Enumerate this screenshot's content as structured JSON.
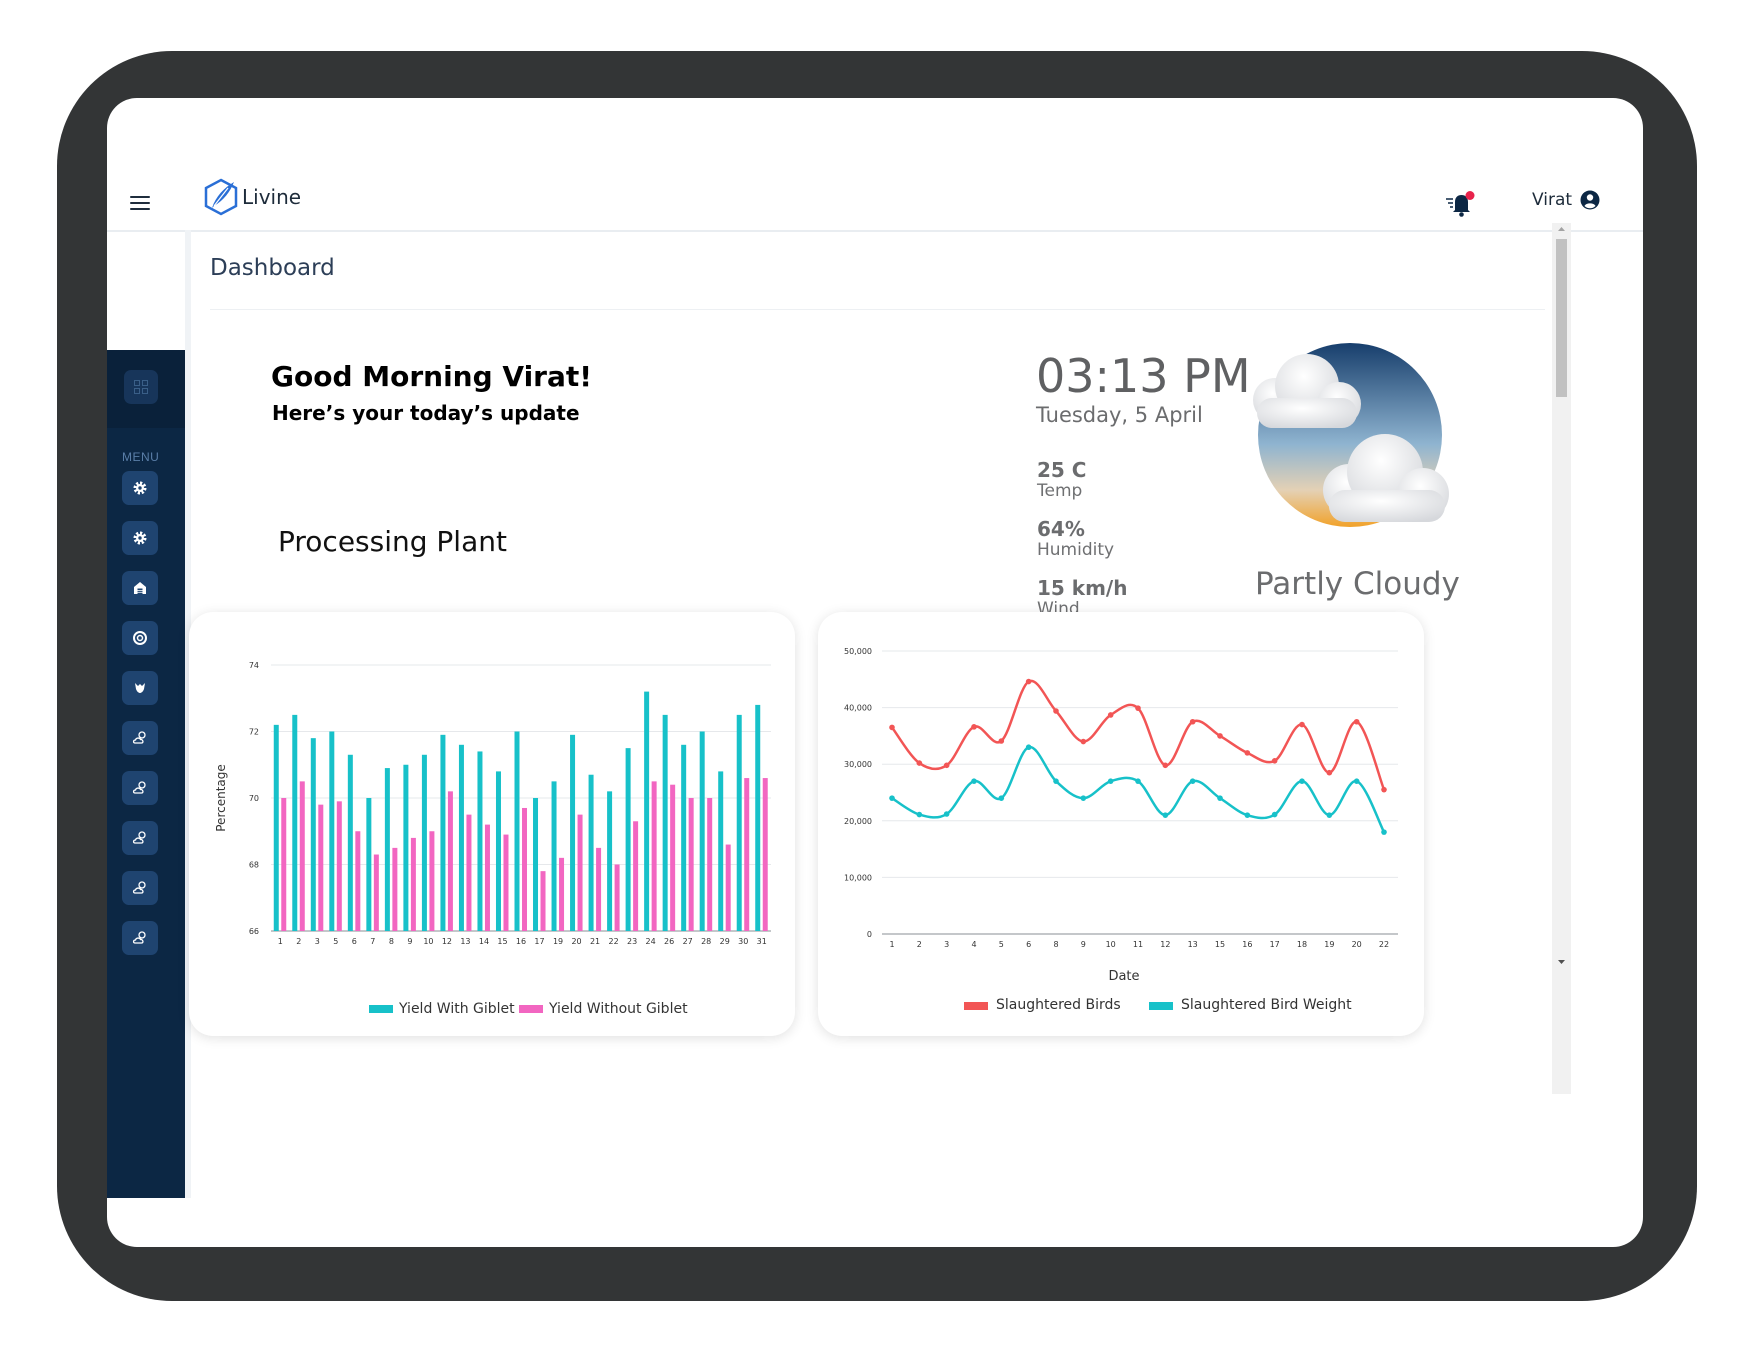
{
  "app": {
    "name": "Livine",
    "user": "Virat"
  },
  "page": {
    "title": "Dashboard"
  },
  "sidebar": {
    "menu_label": "MENU",
    "items": [
      "gear-icon",
      "gear-icon",
      "barn-icon",
      "gauge-icon",
      "chicken-icon",
      "weather-icon",
      "weather-icon",
      "weather-icon",
      "weather-icon",
      "weather-icon"
    ]
  },
  "greeting": {
    "title": "Good Morning Virat!",
    "subtitle": "Here’s your today’s update",
    "section": "Processing Plant"
  },
  "weather": {
    "time": "03:13 PM",
    "date": "Tuesday, 5 April",
    "temp_value": "25 C",
    "temp_label": "Temp",
    "humidity_value": "64%",
    "humidity_label": "Humidity",
    "wind_value": "15 km/h",
    "wind_label": "Wind",
    "condition": "Partly Cloudy"
  },
  "colors": {
    "teal": "#17c1c9",
    "pink": "#f266c1",
    "red": "#f25555",
    "navy": "#0c2744"
  },
  "chart_data": [
    {
      "type": "bar",
      "categories": [
        "1",
        "2",
        "3",
        "5",
        "6",
        "7",
        "8",
        "9",
        "10",
        "12",
        "13",
        "14",
        "15",
        "16",
        "17",
        "19",
        "20",
        "21",
        "22",
        "23",
        "24",
        "26",
        "27",
        "28",
        "29",
        "30",
        "31"
      ],
      "series": [
        {
          "name": "Yield With Giblet",
          "values": [
            72.2,
            72.5,
            71.8,
            72.0,
            71.3,
            70.0,
            70.9,
            71.0,
            71.3,
            71.9,
            71.6,
            71.4,
            70.8,
            72.0,
            70.0,
            70.5,
            71.9,
            70.7,
            70.2,
            71.5,
            73.2,
            72.5,
            71.6,
            72.0,
            70.8,
            72.5,
            72.8
          ]
        },
        {
          "name": "Yield Without Giblet",
          "values": [
            70.0,
            70.5,
            69.8,
            69.9,
            69.0,
            68.3,
            68.5,
            68.8,
            69.0,
            70.2,
            69.5,
            69.2,
            68.9,
            69.7,
            67.8,
            68.2,
            69.5,
            68.5,
            68.0,
            69.3,
            70.5,
            70.4,
            70.0,
            70.0,
            68.6,
            70.6,
            70.6
          ]
        }
      ],
      "ylabel": "Percentage",
      "xlabel": "",
      "ylim": [
        66,
        74
      ],
      "yticks": [
        "66",
        "68",
        "70",
        "72",
        "74"
      ],
      "legend": "bottom"
    },
    {
      "type": "line",
      "x": [
        "1",
        "2",
        "3",
        "4",
        "5",
        "6",
        "8",
        "9",
        "10",
        "11",
        "12",
        "13",
        "15",
        "16",
        "17",
        "18",
        "19",
        "20",
        "22"
      ],
      "series": [
        {
          "name": "Slaughtered Birds",
          "values": [
            36500,
            30200,
            29800,
            36600,
            34100,
            44600,
            39400,
            34000,
            38700,
            39900,
            29800,
            37500,
            35000,
            32000,
            30600,
            37000,
            28500,
            37500,
            25500
          ]
        },
        {
          "name": "Slaughtered Bird Weight",
          "values": [
            24000,
            21100,
            21200,
            27000,
            24000,
            33000,
            27000,
            24000,
            27000,
            27000,
            21000,
            27000,
            24000,
            21000,
            21100,
            27000,
            21000,
            27000,
            18000
          ]
        }
      ],
      "xlabel": "Date",
      "ylabel": "",
      "ylim": [
        0,
        50000
      ],
      "yticks": [
        "0",
        "10,000",
        "20,000",
        "30,000",
        "40,000",
        "50,000"
      ],
      "legend": "bottom"
    }
  ]
}
